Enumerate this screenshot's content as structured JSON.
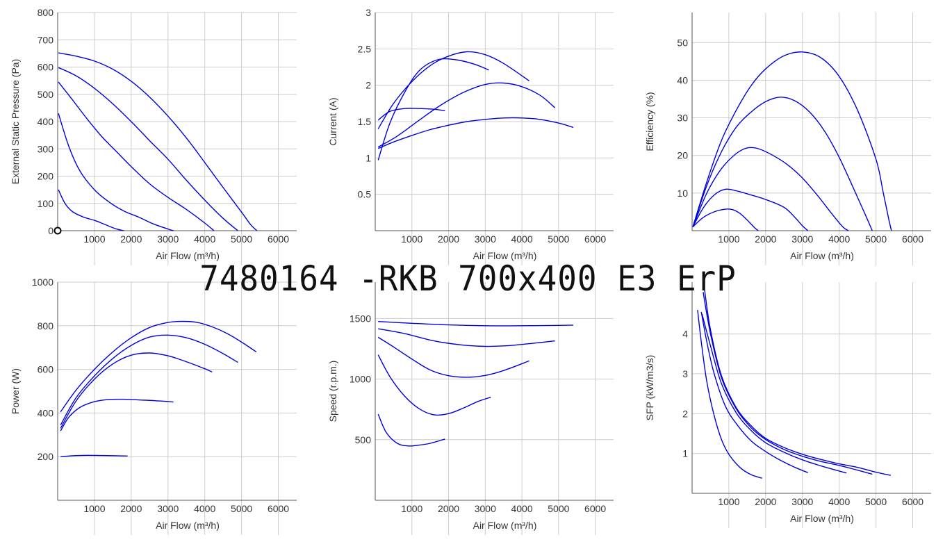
{
  "page": {
    "title": "7480164 -RKB 700x400 E3 ErP"
  },
  "colors": {
    "line": "#0000dd",
    "grid": "#cccccc",
    "axis": "#555555",
    "text": "#333333"
  },
  "chart_data": [
    {
      "id": "pressure",
      "type": "line",
      "xlabel": "Air Flow (m³/h)",
      "ylabel": "External Static Pressure (Pa)",
      "xlim": [
        0,
        6500
      ],
      "ylim": [
        0,
        800
      ],
      "xticks": [
        1000,
        2000,
        3000,
        4000,
        5000,
        6000
      ],
      "yticks": [
        0,
        100,
        200,
        300,
        400,
        500,
        600,
        700,
        800
      ],
      "marker": [
        0,
        0
      ],
      "series": [
        {
          "x": [
            20,
            500,
            1000,
            1500,
            2000,
            2500,
            3000,
            3500,
            4000,
            4500,
            5000,
            5250,
            5420
          ],
          "y": [
            652,
            640,
            622,
            592,
            548,
            490,
            420,
            340,
            250,
            158,
            68,
            22,
            0
          ]
        },
        {
          "x": [
            20,
            500,
            1000,
            1500,
            2000,
            2500,
            3000,
            3500,
            4000,
            4500,
            4900
          ],
          "y": [
            598,
            568,
            522,
            465,
            400,
            330,
            262,
            185,
            112,
            45,
            0
          ]
        },
        {
          "x": [
            20,
            400,
            800,
            1200,
            1600,
            2000,
            2500,
            3000,
            3500,
            4000,
            4250
          ],
          "y": [
            545,
            480,
            410,
            345,
            290,
            235,
            172,
            122,
            78,
            28,
            0
          ]
        },
        {
          "x": [
            20,
            300,
            600,
            1000,
            1400,
            1800,
            2200,
            2600,
            3000,
            3150
          ],
          "y": [
            430,
            310,
            220,
            150,
            105,
            72,
            50,
            25,
            6,
            0
          ]
        },
        {
          "x": [
            20,
            200,
            400,
            700,
            1000,
            1300,
            1600,
            1800
          ],
          "y": [
            150,
            100,
            70,
            50,
            38,
            22,
            6,
            0
          ]
        }
      ]
    },
    {
      "id": "current",
      "type": "line",
      "xlabel": "Air Flow (m³/h)",
      "ylabel": "Current (A)",
      "xlim": [
        0,
        6500
      ],
      "ylim": [
        0,
        3
      ],
      "xticks": [
        1000,
        2000,
        3000,
        4000,
        5000,
        6000
      ],
      "yticks": [
        0.5,
        1,
        1.5,
        2,
        2.5,
        3
      ],
      "series": [
        {
          "x": [
            80,
            500,
            1000,
            1500,
            2000,
            2500,
            3000,
            3500,
            4000,
            4500,
            5000,
            5400
          ],
          "y": [
            1.13,
            1.22,
            1.31,
            1.39,
            1.45,
            1.5,
            1.53,
            1.55,
            1.55,
            1.53,
            1.48,
            1.42
          ]
        },
        {
          "x": [
            80,
            600,
            1200,
            1800,
            2400,
            3000,
            3500,
            4000,
            4500,
            4900
          ],
          "y": [
            1.15,
            1.3,
            1.52,
            1.73,
            1.9,
            2.01,
            2.03,
            1.98,
            1.86,
            1.69
          ]
        },
        {
          "x": [
            80,
            500,
            1000,
            1500,
            2000,
            2500,
            3000,
            3500,
            4200
          ],
          "y": [
            1.4,
            1.75,
            2.05,
            2.27,
            2.4,
            2.46,
            2.42,
            2.3,
            2.06
          ]
        },
        {
          "x": [
            80,
            400,
            800,
            1200,
            1700,
            2200,
            2700,
            3100
          ],
          "y": [
            0.97,
            1.48,
            1.9,
            2.2,
            2.35,
            2.35,
            2.29,
            2.21
          ]
        },
        {
          "x": [
            80,
            400,
            800,
            1200,
            1600,
            1900
          ],
          "y": [
            1.52,
            1.64,
            1.68,
            1.68,
            1.67,
            1.65
          ]
        }
      ]
    },
    {
      "id": "efficiency",
      "type": "line",
      "xlabel": "Air Flow (m³/h)",
      "ylabel": "Efficiency (%)",
      "xlim": [
        0,
        6500
      ],
      "ylim": [
        0,
        58
      ],
      "xticks": [
        1000,
        2000,
        3000,
        4000,
        5000,
        6000
      ],
      "yticks": [
        10,
        20,
        30,
        40,
        50
      ],
      "series": [
        {
          "x": [
            20,
            400,
            800,
            1200,
            1600,
            2000,
            2500,
            3000,
            3500,
            4000,
            4500,
            5000,
            5200,
            5350,
            5420
          ],
          "y": [
            1,
            13,
            24,
            32,
            38.5,
            43,
            46.5,
            47.5,
            46,
            41,
            32,
            19,
            10,
            3,
            0
          ]
        },
        {
          "x": [
            20,
            400,
            800,
            1200,
            1600,
            2000,
            2400,
            2800,
            3200,
            3600,
            4000,
            4400,
            4700,
            4900
          ],
          "y": [
            1,
            12,
            21,
            27.5,
            31.5,
            34.3,
            35.5,
            34.5,
            31.5,
            26.5,
            19.5,
            11,
            4.5,
            0
          ]
        },
        {
          "x": [
            20,
            400,
            800,
            1200,
            1500,
            1800,
            2200,
            2600,
            3000,
            3400,
            3800,
            4100,
            4250
          ],
          "y": [
            1,
            10,
            16.5,
            20.5,
            22,
            21.8,
            20,
            17.5,
            14,
            9.5,
            4.5,
            1,
            0
          ]
        },
        {
          "x": [
            20,
            300,
            600,
            900,
            1200,
            1600,
            2000,
            2500,
            2800,
            3000,
            3150
          ],
          "y": [
            1,
            6,
            9.5,
            11,
            10.6,
            9.5,
            8.3,
            6.2,
            3.5,
            1.3,
            0
          ]
        },
        {
          "x": [
            20,
            300,
            600,
            900,
            1100,
            1300,
            1500,
            1700,
            1800
          ],
          "y": [
            1,
            3.5,
            5,
            5.7,
            5.6,
            4.6,
            2.8,
            0.8,
            0
          ]
        }
      ]
    },
    {
      "id": "power",
      "type": "line",
      "xlabel": "Air Flow (m³/h)",
      "ylabel": "Power (W)",
      "xlim": [
        0,
        6500
      ],
      "ylim": [
        0,
        1000
      ],
      "xticks": [
        1000,
        2000,
        3000,
        4000,
        5000,
        6000
      ],
      "yticks": [
        200,
        400,
        600,
        800,
        1000
      ],
      "series": [
        {
          "x": [
            80,
            500,
            1000,
            1500,
            2000,
            2500,
            3000,
            3400,
            3800,
            4200,
            4600,
            5000,
            5400
          ],
          "y": [
            405,
            505,
            600,
            680,
            745,
            792,
            815,
            820,
            815,
            795,
            765,
            725,
            680
          ]
        },
        {
          "x": [
            80,
            500,
            1000,
            1500,
            2000,
            2500,
            3000,
            3500,
            4000,
            4500,
            4900
          ],
          "y": [
            345,
            470,
            570,
            650,
            710,
            748,
            757,
            745,
            715,
            672,
            632
          ]
        },
        {
          "x": [
            80,
            500,
            1000,
            1500,
            2000,
            2500,
            3000,
            3500,
            4000,
            4200
          ],
          "y": [
            330,
            455,
            555,
            625,
            665,
            675,
            662,
            635,
            603,
            588
          ]
        },
        {
          "x": [
            80,
            300,
            600,
            1000,
            1400,
            1800,
            2200,
            2600,
            3000,
            3150
          ],
          "y": [
            318,
            380,
            425,
            452,
            462,
            463,
            460,
            457,
            453,
            450
          ]
        },
        {
          "x": [
            80,
            400,
            800,
            1200,
            1600,
            1900
          ],
          "y": [
            200,
            204,
            206,
            205,
            204,
            203
          ]
        }
      ]
    },
    {
      "id": "speed",
      "type": "line",
      "xlabel": "Air Flow (m³/h)",
      "ylabel": "Speed (r.p.m.)",
      "xlim": [
        0,
        6500
      ],
      "ylim": [
        0,
        1800
      ],
      "xticks": [
        1000,
        2000,
        3000,
        4000,
        5000,
        6000
      ],
      "yticks": [
        500,
        1000,
        1500
      ],
      "series": [
        {
          "x": [
            80,
            1000,
            2000,
            3000,
            4000,
            5000,
            5400
          ],
          "y": [
            1475,
            1460,
            1447,
            1440,
            1440,
            1443,
            1445
          ]
        },
        {
          "x": [
            80,
            800,
            1600,
            2400,
            3000,
            3600,
            4200,
            4900
          ],
          "y": [
            1415,
            1375,
            1315,
            1280,
            1270,
            1275,
            1292,
            1315
          ]
        },
        {
          "x": [
            80,
            500,
            1000,
            1500,
            2000,
            2500,
            3000,
            3500,
            4200
          ],
          "y": [
            1345,
            1265,
            1165,
            1075,
            1028,
            1015,
            1030,
            1070,
            1150
          ]
        },
        {
          "x": [
            80,
            400,
            800,
            1200,
            1600,
            2000,
            2400,
            2800,
            3150
          ],
          "y": [
            1200,
            1020,
            860,
            755,
            705,
            715,
            760,
            815,
            850
          ]
        },
        {
          "x": [
            80,
            300,
            600,
            900,
            1200,
            1500,
            1900
          ],
          "y": [
            710,
            560,
            470,
            448,
            455,
            470,
            505
          ]
        }
      ]
    },
    {
      "id": "sfp",
      "type": "line",
      "xlabel": "Air Flow (m³/h)",
      "ylabel": "SFP (kW/m3/s)",
      "xlim": [
        0,
        6500
      ],
      "ylim": [
        0,
        5.3
      ],
      "xticks": [
        1000,
        2000,
        3000,
        4000,
        5000,
        6000
      ],
      "yticks": [
        1,
        2,
        3,
        4
      ],
      "series": [
        {
          "x": [
            340,
            500,
            800,
            1200,
            1600,
            2000,
            2500,
            3000,
            3500,
            4000,
            4500,
            5000,
            5400
          ],
          "y": [
            5.1,
            4.1,
            2.95,
            2.15,
            1.7,
            1.38,
            1.15,
            0.98,
            0.85,
            0.74,
            0.65,
            0.53,
            0.45
          ]
        },
        {
          "x": [
            300,
            500,
            800,
            1200,
            1600,
            2000,
            2500,
            3000,
            3500,
            4000,
            4500,
            4900
          ],
          "y": [
            5.05,
            4.0,
            2.9,
            2.12,
            1.65,
            1.35,
            1.1,
            0.93,
            0.8,
            0.7,
            0.58,
            0.48
          ]
        },
        {
          "x": [
            270,
            500,
            800,
            1200,
            1600,
            2000,
            2500,
            3000,
            3500,
            4000,
            4200
          ],
          "y": [
            4.5,
            3.7,
            2.75,
            2.02,
            1.58,
            1.27,
            1.03,
            0.84,
            0.69,
            0.56,
            0.51
          ]
        },
        {
          "x": [
            250,
            400,
            600,
            900,
            1200,
            1600,
            2000,
            2400,
            2800,
            3150
          ],
          "y": [
            4.55,
            3.8,
            3.0,
            2.2,
            1.75,
            1.32,
            1.05,
            0.83,
            0.65,
            0.52
          ]
        },
        {
          "x": [
            150,
            250,
            400,
            600,
            800,
            1000,
            1300,
            1600,
            1900
          ],
          "y": [
            4.6,
            3.8,
            2.8,
            1.95,
            1.35,
            0.98,
            0.65,
            0.47,
            0.38
          ]
        }
      ]
    }
  ]
}
